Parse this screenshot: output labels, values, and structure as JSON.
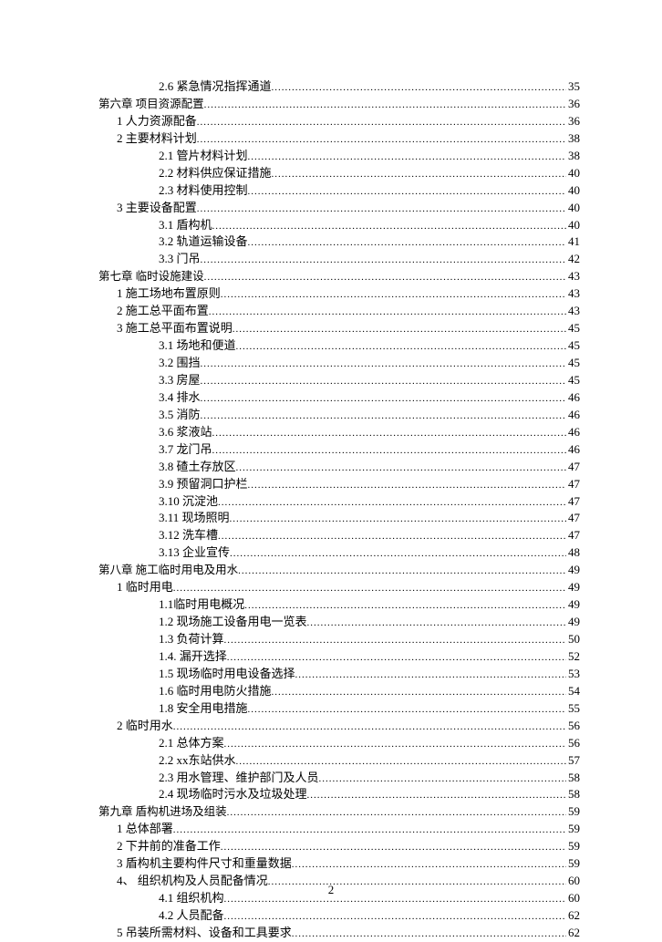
{
  "page_number": "2",
  "entries": [
    {
      "indent": 2,
      "label": "2.6 紧急情况指挥通道",
      "page": "35"
    },
    {
      "indent": 0,
      "label": "第六章 项目资源配置",
      "page": "36",
      "chapter": true
    },
    {
      "indent": 1,
      "label": "1 人力资源配备",
      "page": "36"
    },
    {
      "indent": 1,
      "label": "2 主要材料计划",
      "page": "38"
    },
    {
      "indent": 2,
      "label": "2.1 管片材料计划",
      "page": "38"
    },
    {
      "indent": 2,
      "label": "2.2 材料供应保证措施",
      "page": "40"
    },
    {
      "indent": 2,
      "label": "2.3 材料使用控制",
      "page": "40"
    },
    {
      "indent": 1,
      "label": "3 主要设备配置",
      "page": "40"
    },
    {
      "indent": 2,
      "label": "3.1 盾构机",
      "page": "40"
    },
    {
      "indent": 2,
      "label": "3.2 轨道运输设备",
      "page": "41"
    },
    {
      "indent": 2,
      "label": "3.3 门吊",
      "page": "42"
    },
    {
      "indent": 0,
      "label": "第七章 临时设施建设",
      "page": "43",
      "chapter": true
    },
    {
      "indent": 1,
      "label": "1 施工场地布置原则",
      "page": "43"
    },
    {
      "indent": 1,
      "label": "2 施工总平面布置",
      "page": "43"
    },
    {
      "indent": 1,
      "label": "3 施工总平面布置说明",
      "page": "45"
    },
    {
      "indent": 2,
      "label": "3.1 场地和便道",
      "page": "45"
    },
    {
      "indent": 2,
      "label": "3.2 围挡",
      "page": "45"
    },
    {
      "indent": 2,
      "label": "3.3 房屋",
      "page": "45"
    },
    {
      "indent": 2,
      "label": "3.4 排水",
      "page": "46"
    },
    {
      "indent": 2,
      "label": "3.5 消防",
      "page": "46"
    },
    {
      "indent": 2,
      "label": "3.6 浆液站",
      "page": "46"
    },
    {
      "indent": 2,
      "label": "3.7 龙门吊",
      "page": "46"
    },
    {
      "indent": 2,
      "label": "3.8 碴土存放区",
      "page": "47"
    },
    {
      "indent": 2,
      "label": "3.9 预留洞口护栏",
      "page": "47"
    },
    {
      "indent": 2,
      "label": "3.10 沉淀池",
      "page": "47"
    },
    {
      "indent": 2,
      "label": "3.11 现场照明",
      "page": "47"
    },
    {
      "indent": 2,
      "label": "3.12 洗车槽",
      "page": "47"
    },
    {
      "indent": 2,
      "label": "3.13 企业宣传",
      "page": "48"
    },
    {
      "indent": 0,
      "label": "第八章 施工临时用电及用水",
      "page": "49",
      "chapter": true
    },
    {
      "indent": 1,
      "label": "1 临时用电",
      "page": "49"
    },
    {
      "indent": 2,
      "label": "1.1临时用电概况",
      "page": "49"
    },
    {
      "indent": 2,
      "label": "1.2 现场施工设备用电一览表",
      "page": "49"
    },
    {
      "indent": 2,
      "label": "1.3 负荷计算",
      "page": "50"
    },
    {
      "indent": 2,
      "label": "1.4. 漏开选择",
      "page": "52"
    },
    {
      "indent": 2,
      "label": "1.5 现场临时用电设备选择",
      "page": "53"
    },
    {
      "indent": 2,
      "label": "1.6 临时用电防火措施",
      "page": "54"
    },
    {
      "indent": 2,
      "label": "1.8 安全用电措施",
      "page": "55"
    },
    {
      "indent": 1,
      "label": "2 临时用水",
      "page": "56"
    },
    {
      "indent": 2,
      "label": "2.1 总体方案",
      "page": "56"
    },
    {
      "indent": 2,
      "label": "2.2 xx东站供水",
      "page": "57"
    },
    {
      "indent": 2,
      "label": "2.3 用水管理、维护部门及人员",
      "page": "58"
    },
    {
      "indent": 2,
      "label": "2.4 现场临时污水及垃圾处理",
      "page": "58"
    },
    {
      "indent": 0,
      "label": "第九章 盾构机进场及组装",
      "page": "59",
      "chapter": true
    },
    {
      "indent": 1,
      "label": "1 总体部署",
      "page": "59"
    },
    {
      "indent": 1,
      "label": "2 下井前的准备工作",
      "page": "59"
    },
    {
      "indent": 1,
      "label": "3 盾构机主要构件尺寸和重量数据",
      "page": "59"
    },
    {
      "indent": 1,
      "label": "4、  组织机构及人员配备情况",
      "page": "60"
    },
    {
      "indent": 2,
      "label": "4.1 组织机构",
      "page": "60"
    },
    {
      "indent": 2,
      "label": "4.2 人员配备",
      "page": "62"
    },
    {
      "indent": 1,
      "label": "5 吊装所需材料、设备和工具要求",
      "page": "62"
    }
  ]
}
